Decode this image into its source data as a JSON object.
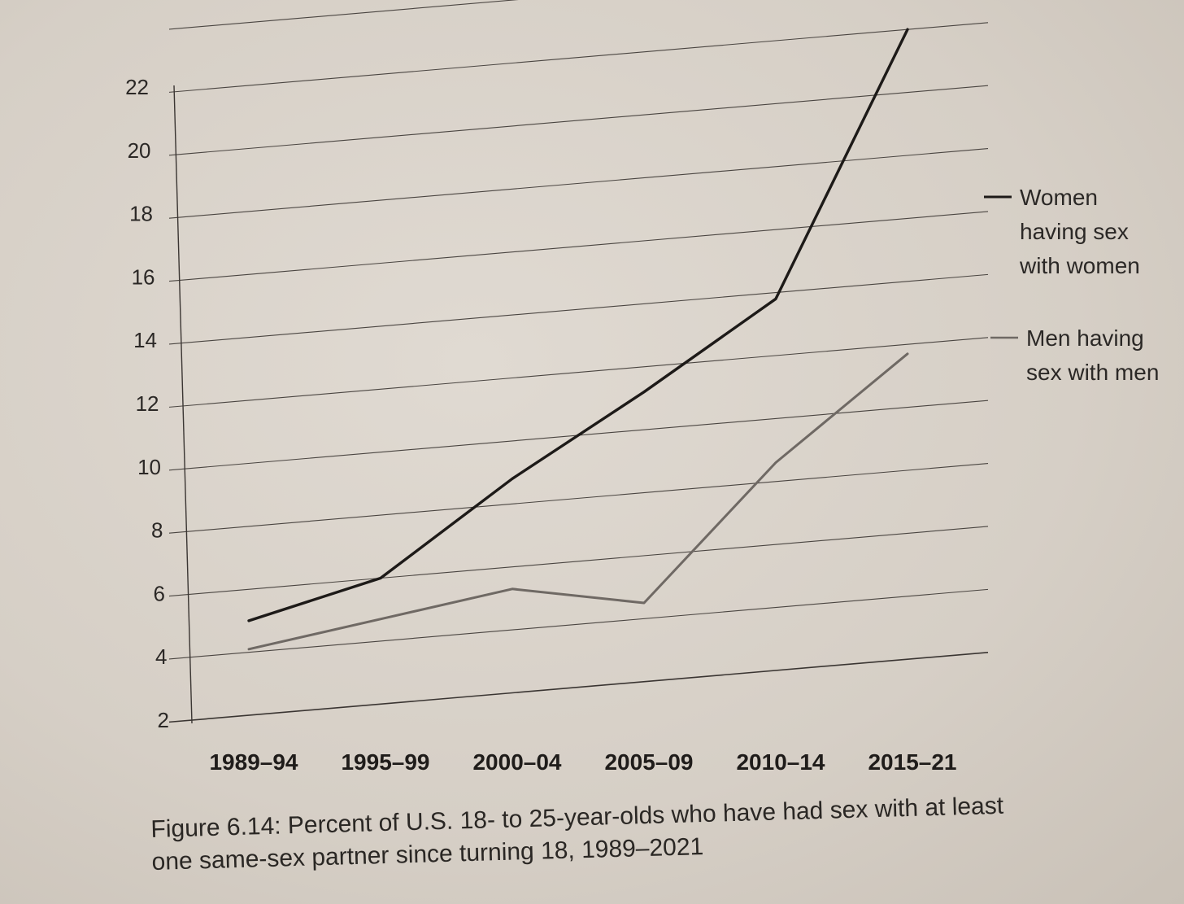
{
  "chart_data": {
    "type": "line",
    "categories": [
      "1989–94",
      "1995–99",
      "2000–04",
      "2005–09",
      "2010–14",
      "2015–21"
    ],
    "series": [
      {
        "name": "Women having sex with women",
        "legend_lines": [
          "Women",
          "having sex",
          "with women"
        ],
        "color": "#1d1a18",
        "values": [
          5.0,
          6.0,
          8.8,
          11.2,
          13.8,
          22.0
        ]
      },
      {
        "name": "Men having sex with men",
        "legend_lines": [
          "Men having",
          "sex with men"
        ],
        "color": "#6f6964",
        "values": [
          4.1,
          4.7,
          5.3,
          4.5,
          8.6,
          11.7
        ]
      }
    ],
    "yticks": [
      2,
      4,
      6,
      8,
      10,
      12,
      14,
      16,
      18,
      20,
      22
    ],
    "ylim": [
      2,
      24
    ],
    "grid": true,
    "legend": "right",
    "caption_lines": [
      "Figure 6.14: Percent of U.S. 18- to 25-year-olds who have had sex with at least",
      "one same-sex partner since turning 18, 1989–2021"
    ]
  }
}
